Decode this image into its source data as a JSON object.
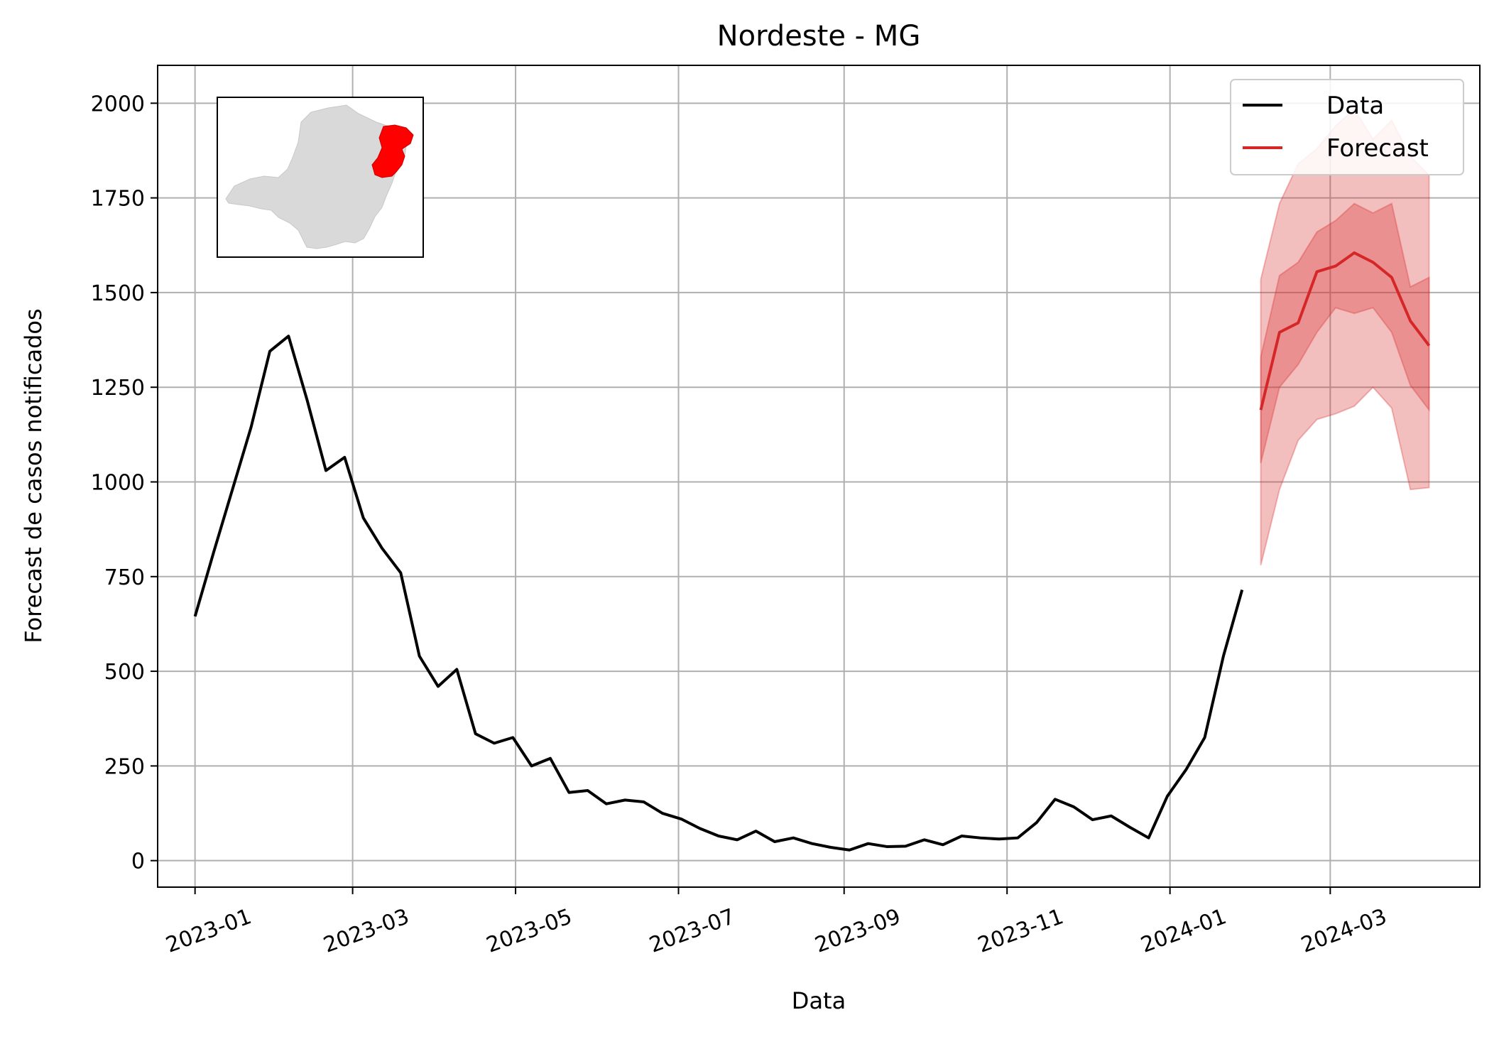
{
  "chart_data": {
    "type": "line",
    "title": "Nordeste - MG",
    "xlabel": "Data",
    "ylabel": "Forecast de casos notificados",
    "ylim": [
      -70,
      2100
    ],
    "xlim": [
      "2022-12-18",
      "2024-04-26"
    ],
    "grid": true,
    "legend_position": "top-right",
    "x_ticks": [
      "2023-01-01",
      "2023-03-01",
      "2023-05-01",
      "2023-07-01",
      "2023-09-01",
      "2023-11-01",
      "2024-01-01",
      "2024-03-01"
    ],
    "x_tick_labels": [
      "2023-01",
      "2023-03",
      "2023-05",
      "2023-07",
      "2023-09",
      "2023-11",
      "2024-01",
      "2024-03"
    ],
    "y_ticks": [
      0,
      250,
      500,
      750,
      1000,
      1250,
      1500,
      1750,
      2000
    ],
    "y_tick_labels": [
      "0",
      "250",
      "500",
      "750",
      "1000",
      "1250",
      "1500",
      "1750",
      "2000"
    ],
    "series": [
      {
        "name": "Data",
        "color": "#000000",
        "x": [
          "2023-01-01",
          "2023-01-08",
          "2023-01-15",
          "2023-01-22",
          "2023-01-29",
          "2023-02-05",
          "2023-02-12",
          "2023-02-19",
          "2023-02-26",
          "2023-03-05",
          "2023-03-12",
          "2023-03-19",
          "2023-03-26",
          "2023-04-02",
          "2023-04-09",
          "2023-04-16",
          "2023-04-23",
          "2023-04-30",
          "2023-05-07",
          "2023-05-14",
          "2023-05-21",
          "2023-05-28",
          "2023-06-04",
          "2023-06-11",
          "2023-06-18",
          "2023-06-25",
          "2023-07-02",
          "2023-07-09",
          "2023-07-16",
          "2023-07-23",
          "2023-07-30",
          "2023-08-06",
          "2023-08-13",
          "2023-08-20",
          "2023-08-27",
          "2023-09-03",
          "2023-09-10",
          "2023-09-17",
          "2023-09-24",
          "2023-10-01",
          "2023-10-08",
          "2023-10-15",
          "2023-10-22",
          "2023-10-29",
          "2023-11-05",
          "2023-11-12",
          "2023-11-19",
          "2023-11-26",
          "2023-12-03",
          "2023-12-10",
          "2023-12-17",
          "2023-12-24",
          "2023-12-31",
          "2024-01-07",
          "2024-01-14",
          "2024-01-21",
          "2024-01-28"
        ],
        "values": [
          645,
          815,
          980,
          1145,
          1345,
          1385,
          1215,
          1030,
          1065,
          905,
          825,
          760,
          540,
          460,
          505,
          335,
          310,
          325,
          250,
          270,
          180,
          185,
          150,
          160,
          155,
          125,
          110,
          85,
          65,
          55,
          78,
          50,
          60,
          45,
          35,
          28,
          45,
          37,
          38,
          55,
          42,
          65,
          60,
          57,
          60,
          100,
          162,
          142,
          108,
          118,
          88,
          60,
          170,
          240,
          325,
          540,
          715
        ]
      },
      {
        "name": "Forecast",
        "color": "#d62728",
        "x": [
          "2024-02-04",
          "2024-02-11",
          "2024-02-18",
          "2024-02-25",
          "2024-03-03",
          "2024-03-10",
          "2024-03-17",
          "2024-03-24",
          "2024-03-31",
          "2024-04-07"
        ],
        "values": [
          1190,
          1395,
          1420,
          1555,
          1570,
          1605,
          1580,
          1540,
          1425,
          1360
        ],
        "inner_lower": [
          1050,
          1250,
          1310,
          1395,
          1460,
          1445,
          1460,
          1395,
          1255,
          1190
        ],
        "inner_upper": [
          1330,
          1545,
          1580,
          1660,
          1690,
          1735,
          1710,
          1735,
          1515,
          1540
        ],
        "outer_lower": [
          780,
          980,
          1110,
          1165,
          1180,
          1200,
          1250,
          1195,
          980,
          985
        ],
        "outer_upper": [
          1535,
          1735,
          1840,
          1880,
          1940,
          1985,
          1905,
          1955,
          1860,
          1810
        ]
      }
    ],
    "inset_map": {
      "region": "Minas Gerais",
      "highlight": "Nordeste",
      "base_color": "#d9d9d9",
      "highlight_color": "#ff0000"
    }
  }
}
